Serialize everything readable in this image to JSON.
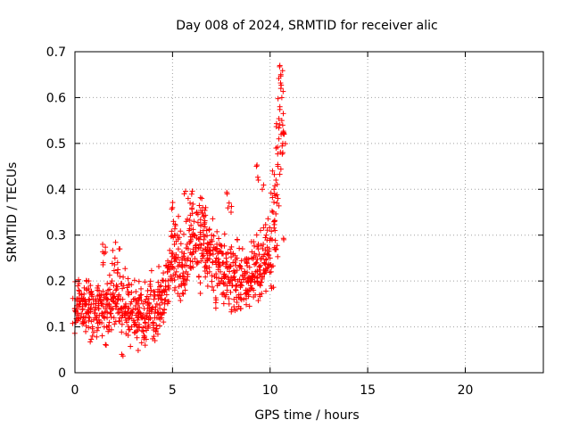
{
  "chart_data": {
    "type": "scatter",
    "title": "Day 008 of 2024, SRMTID for receiver alic",
    "xlabel": "GPS time / hours",
    "ylabel": "SRMTID / TECUs",
    "xlim": [
      0,
      24
    ],
    "ylim": [
      0,
      0.7
    ],
    "xticks": [
      0,
      5,
      10,
      15,
      20
    ],
    "yticks": [
      0,
      0.1,
      0.2,
      0.3,
      0.4,
      0.5,
      0.6,
      0.7
    ],
    "grid": true,
    "marker": "+",
    "series": [
      {
        "name": "SRMTID",
        "color": "#ff0000",
        "x": [
          0.0,
          0.05,
          0.1,
          0.15,
          0.2,
          0.25,
          0.3,
          0.35,
          0.4,
          0.45,
          0.5,
          0.55,
          0.6,
          0.65,
          0.7,
          0.75,
          0.8,
          0.85,
          0.9,
          0.95,
          1.0,
          1.05,
          1.1,
          1.15,
          1.2,
          1.25,
          1.3,
          1.35,
          1.4,
          1.45,
          1.5,
          1.55,
          1.6,
          1.65,
          1.7,
          1.75,
          1.8,
          1.85,
          1.9,
          1.95,
          2.0,
          2.05,
          2.1,
          2.15,
          2.2,
          2.25,
          2.3,
          2.35,
          2.4,
          2.45,
          2.5,
          2.55,
          2.6,
          2.65,
          2.7,
          2.75,
          2.8,
          2.85,
          2.9,
          2.95,
          3.0,
          3.05,
          3.1,
          3.15,
          3.2,
          3.25,
          3.3,
          3.35,
          3.4,
          3.45,
          3.5,
          3.55,
          3.6,
          3.65,
          3.7,
          3.75,
          3.8,
          3.85,
          3.9,
          3.95,
          4.0,
          4.05,
          4.1,
          4.15,
          4.2,
          4.25,
          4.3,
          4.35,
          4.4,
          4.45,
          4.5,
          4.55,
          4.6,
          4.65,
          4.7,
          4.75,
          4.8,
          4.85,
          4.9,
          4.95,
          5.0,
          5.05,
          5.1,
          5.15,
          5.2,
          5.25,
          5.3,
          5.35,
          5.4,
          5.45,
          5.5,
          5.55,
          5.6,
          5.65,
          5.7,
          5.75,
          5.8,
          5.85,
          5.9,
          5.95,
          6.0,
          6.05,
          6.1,
          6.15,
          6.2,
          6.25,
          6.3,
          6.35,
          6.4,
          6.45,
          6.5,
          6.55,
          6.6,
          6.65,
          6.7,
          6.75,
          6.8,
          6.85,
          6.9,
          6.95,
          7.0,
          7.05,
          7.1,
          7.15,
          7.2,
          7.25,
          7.3,
          7.35,
          7.4,
          7.45,
          7.5,
          7.55,
          7.6,
          7.65,
          7.7,
          7.75,
          7.8,
          7.85,
          7.9,
          7.95,
          8.0,
          8.05,
          8.1,
          8.15,
          8.2,
          8.25,
          8.3,
          8.35,
          8.4,
          8.45,
          8.5,
          8.55,
          8.6,
          8.65,
          8.7,
          8.75,
          8.8,
          8.85,
          8.9,
          8.95,
          9.0,
          9.05,
          9.1,
          9.15,
          9.2,
          9.25,
          9.3,
          9.35,
          9.4,
          9.45,
          9.5,
          9.55,
          9.6,
          9.65,
          9.7,
          9.75,
          9.8,
          9.85,
          9.9,
          9.95,
          10.0,
          10.05,
          10.1,
          10.15,
          10.2,
          10.25,
          10.3,
          10.35,
          10.4,
          10.45,
          10.5,
          10.55,
          10.6,
          10.65,
          10.7
        ],
        "y": [
          0.14,
          0.11,
          0.16,
          0.13,
          0.18,
          0.15,
          0.12,
          0.17,
          0.14,
          0.16,
          0.11,
          0.15,
          0.18,
          0.13,
          0.16,
          0.12,
          0.14,
          0.17,
          0.1,
          0.15,
          0.13,
          0.16,
          0.12,
          0.18,
          0.14,
          0.11,
          0.16,
          0.15,
          0.13,
          0.24,
          0.1,
          0.17,
          0.14,
          0.12,
          0.18,
          0.15,
          0.13,
          0.16,
          0.2,
          0.14,
          0.12,
          0.25,
          0.18,
          0.15,
          0.13,
          0.17,
          0.21,
          0.14,
          0.12,
          0.16,
          0.19,
          0.13,
          0.15,
          0.11,
          0.14,
          0.17,
          0.12,
          0.15,
          0.1,
          0.13,
          0.16,
          0.11,
          0.14,
          0.09,
          0.12,
          0.15,
          0.1,
          0.13,
          0.17,
          0.12,
          0.09,
          0.14,
          0.11,
          0.16,
          0.13,
          0.1,
          0.15,
          0.12,
          0.18,
          0.14,
          0.11,
          0.16,
          0.13,
          0.09,
          0.15,
          0.17,
          0.12,
          0.14,
          0.19,
          0.16,
          0.13,
          0.18,
          0.15,
          0.2,
          0.17,
          0.22,
          0.19,
          0.24,
          0.21,
          0.26,
          0.23,
          0.33,
          0.28,
          0.25,
          0.22,
          0.3,
          0.27,
          0.24,
          0.21,
          0.19,
          0.23,
          0.2,
          0.26,
          0.18,
          0.22,
          0.28,
          0.25,
          0.31,
          0.37,
          0.29,
          0.26,
          0.23,
          0.33,
          0.3,
          0.27,
          0.35,
          0.24,
          0.21,
          0.28,
          0.32,
          0.26,
          0.36,
          0.29,
          0.23,
          0.27,
          0.31,
          0.25,
          0.28,
          0.22,
          0.26,
          0.3,
          0.24,
          0.18,
          0.21,
          0.27,
          0.25,
          0.19,
          0.23,
          0.28,
          0.22,
          0.2,
          0.26,
          0.24,
          0.17,
          0.21,
          0.25,
          0.18,
          0.23,
          0.15,
          0.2,
          0.26,
          0.19,
          0.24,
          0.16,
          0.22,
          0.18,
          0.25,
          0.2,
          0.17,
          0.23,
          0.14,
          0.19,
          0.21,
          0.16,
          0.22,
          0.18,
          0.24,
          0.2,
          0.17,
          0.23,
          0.19,
          0.25,
          0.21,
          0.18,
          0.26,
          0.22,
          0.24,
          0.2,
          0.27,
          0.23,
          0.19,
          0.25,
          0.21,
          0.28,
          0.24,
          0.22,
          0.3,
          0.26,
          0.23,
          0.27,
          0.25,
          0.22,
          0.29,
          0.35,
          0.4,
          0.31,
          0.27,
          0.37,
          0.45,
          0.51,
          0.58,
          0.65,
          0.55,
          0.48,
          0.52
        ],
        "x_extra": [
          0.9,
          1.5,
          1.6,
          1.7,
          2.3,
          2.4,
          3.6,
          4.1,
          4.2,
          5.0,
          5.1,
          5.6,
          5.7,
          6.1,
          6.5,
          6.6,
          6.7,
          7.0,
          7.8,
          7.9,
          8.0,
          9.3,
          9.4,
          9.6,
          10.3,
          10.4,
          10.5,
          10.55,
          10.6,
          10.65,
          10.7
        ],
        "y_extra": [
          0.08,
          0.26,
          0.06,
          0.09,
          0.27,
          0.04,
          0.06,
          0.07,
          0.12,
          0.36,
          0.3,
          0.39,
          0.33,
          0.3,
          0.38,
          0.34,
          0.36,
          0.29,
          0.39,
          0.37,
          0.35,
          0.45,
          0.42,
          0.4,
          0.42,
          0.38,
          0.67,
          0.62,
          0.6,
          0.5,
          0.29
        ]
      }
    ]
  }
}
